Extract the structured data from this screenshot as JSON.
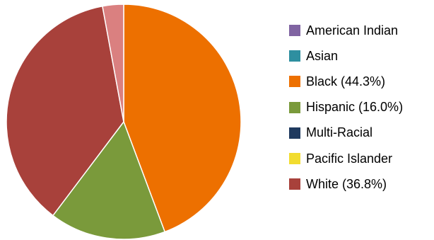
{
  "chart_data": {
    "type": "pie",
    "title": "",
    "slices": [
      {
        "label": "Black (44.3%)",
        "category": "Black",
        "value": 44.3,
        "color": "#ED7000"
      },
      {
        "label": "Hispanic (16.0%)",
        "category": "Hispanic",
        "value": 16.0,
        "color": "#7A9A3B"
      },
      {
        "label": "White (36.8%)",
        "category": "White",
        "value": 36.8,
        "color": "#A8413B"
      },
      {
        "label": "",
        "category": "",
        "value": 2.9,
        "color": "#DA8080"
      }
    ],
    "legend": {
      "position": "right",
      "entries": [
        {
          "label": "American Indian",
          "color": "#8064A2"
        },
        {
          "label": "Asian",
          "color": "#2E8FA0"
        },
        {
          "label": "Black (44.3%)",
          "color": "#ED7000"
        },
        {
          "label": "Hispanic (16.0%)",
          "color": "#7A9A3B"
        },
        {
          "label": "Multi-Racial",
          "color": "#1F3A5F"
        },
        {
          "label": "Pacific Islander",
          "color": "#F2DC2F"
        },
        {
          "label": "White (36.8%)",
          "color": "#A8413B"
        }
      ]
    }
  }
}
